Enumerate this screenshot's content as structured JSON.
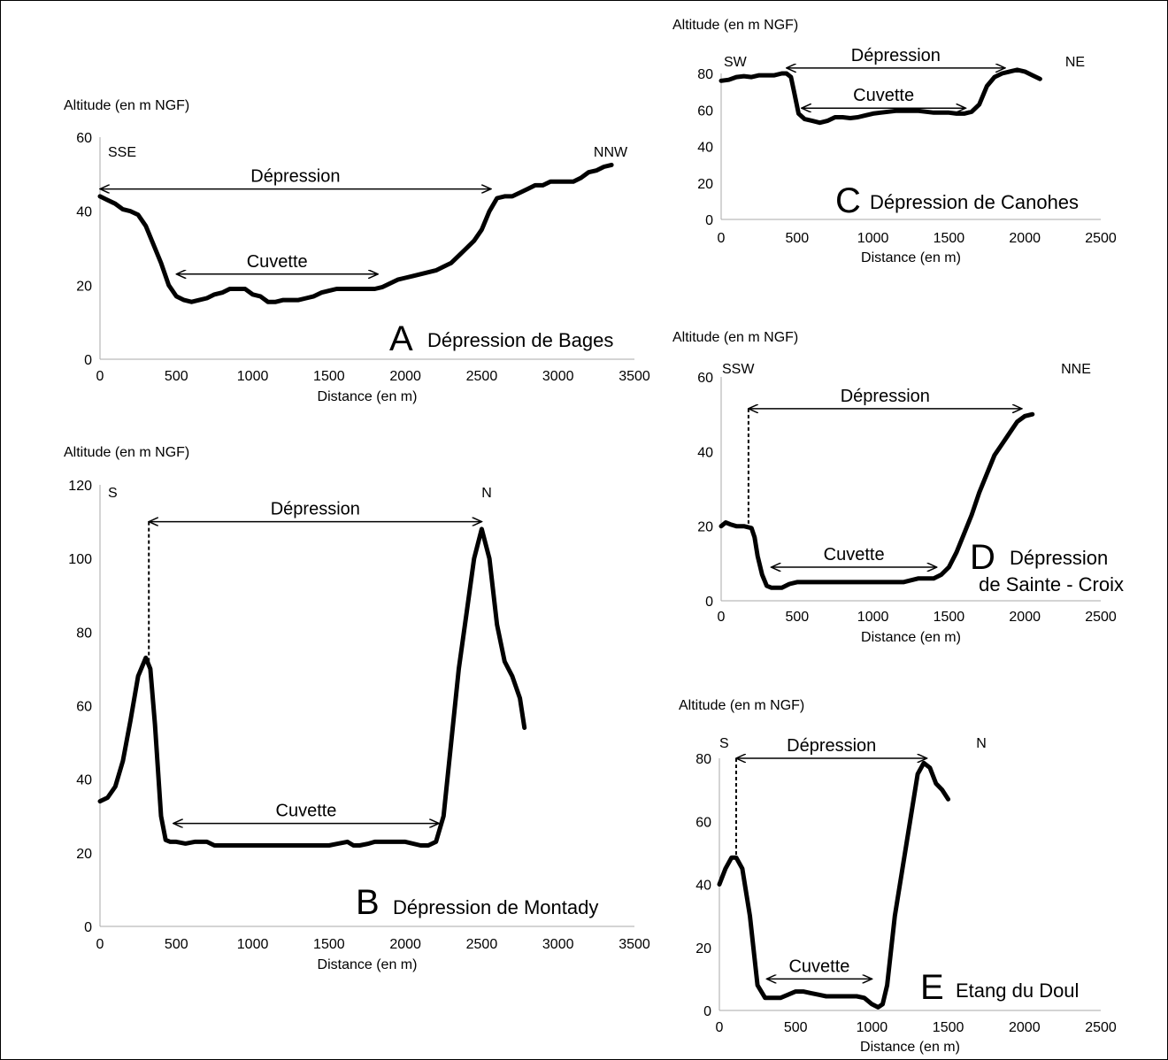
{
  "chart_data": [
    {
      "type": "line",
      "panel_letter": "A",
      "panel_name": "Dépression de Bages",
      "ylabel": "Altitude (en m NGF)",
      "xlabel": "Distance (en m)",
      "xlim": [
        0,
        3500
      ],
      "ylim": [
        0,
        60
      ],
      "xticks": [
        0,
        500,
        1000,
        1500,
        2000,
        2500,
        3000,
        3500
      ],
      "yticks": [
        0,
        20,
        40,
        60
      ],
      "direction_left": "SSE",
      "direction_right": "NNW",
      "depression_label": "Dépression",
      "depression_range": [
        0,
        2560
      ],
      "depression_y": 46,
      "cuvette_label": "Cuvette",
      "cuvette_range": [
        500,
        1820
      ],
      "cuvette_y": 23,
      "series": [
        {
          "x": [
            0,
            50,
            100,
            150,
            200,
            250,
            300,
            350,
            400,
            450,
            500,
            550,
            600,
            650,
            700,
            750,
            800,
            850,
            900,
            950,
            1000,
            1050,
            1100,
            1150,
            1200,
            1250,
            1300,
            1350,
            1400,
            1450,
            1500,
            1550,
            1600,
            1650,
            1700,
            1750,
            1800,
            1850,
            1900,
            1950,
            2000,
            2050,
            2100,
            2150,
            2200,
            2250,
            2300,
            2350,
            2400,
            2450,
            2500,
            2550,
            2600,
            2650,
            2700,
            2750,
            2800,
            2850,
            2900,
            2950,
            3000,
            3050,
            3100,
            3150,
            3200,
            3250,
            3300,
            3350
          ],
          "y": [
            44,
            43,
            42,
            40.5,
            40,
            39,
            36,
            31,
            26,
            20,
            17,
            16,
            15.5,
            16,
            16.5,
            17.5,
            18,
            19,
            19,
            19,
            17.5,
            17,
            15.5,
            15.5,
            16,
            16,
            16,
            16.5,
            17,
            18,
            18.5,
            19,
            19,
            19,
            19,
            19,
            19,
            19.5,
            20.5,
            21.5,
            22,
            22.5,
            23,
            23.5,
            24,
            25,
            26,
            28,
            30,
            32,
            35,
            40,
            43.5,
            44,
            44,
            45,
            46,
            47,
            47,
            48,
            48,
            48,
            48,
            49,
            50.5,
            51,
            52,
            52.5
          ]
        }
      ]
    },
    {
      "type": "line",
      "panel_letter": "B",
      "panel_name": "Dépression de Montady",
      "ylabel": "Altitude (en m NGF)",
      "xlabel": "Distance (en m)",
      "xlim": [
        0,
        3500
      ],
      "ylim": [
        0,
        120
      ],
      "xticks": [
        0,
        500,
        1000,
        1500,
        2000,
        2500,
        3000,
        3500
      ],
      "yticks": [
        0,
        20,
        40,
        60,
        80,
        100,
        120
      ],
      "direction_left": "S",
      "direction_right": "N",
      "depression_label": "Dépression",
      "depression_range": [
        320,
        2500
      ],
      "depression_y": 110,
      "depression_dashed_at": 320,
      "cuvette_label": "Cuvette",
      "cuvette_range": [
        480,
        2220
      ],
      "cuvette_y": 28,
      "series": [
        {
          "x": [
            0,
            50,
            100,
            150,
            200,
            250,
            300,
            330,
            360,
            400,
            430,
            460,
            500,
            560,
            620,
            700,
            750,
            800,
            1000,
            1200,
            1500,
            1560,
            1620,
            1660,
            1700,
            1760,
            1800,
            2000,
            2100,
            2150,
            2200,
            2250,
            2300,
            2350,
            2400,
            2450,
            2500,
            2550,
            2600,
            2650,
            2700,
            2750,
            2780
          ],
          "y": [
            34,
            35,
            38,
            45,
            56,
            68,
            73,
            70,
            55,
            30,
            23.5,
            23,
            23,
            22.5,
            23,
            23,
            22,
            22,
            22,
            22,
            22,
            22.5,
            23,
            22,
            22,
            22.5,
            23,
            23,
            22,
            22,
            23,
            30,
            50,
            70,
            85,
            100,
            108,
            100,
            82,
            72,
            68,
            62,
            54
          ]
        }
      ]
    },
    {
      "type": "line",
      "panel_letter": "C",
      "panel_name": "Dépression de Canohes",
      "ylabel": "Altitude (en m NGF)",
      "xlabel": "Distance (en m)",
      "xlim": [
        0,
        2500
      ],
      "ylim": [
        0,
        80
      ],
      "xticks": [
        0,
        500,
        1000,
        1500,
        2000,
        2500
      ],
      "yticks": [
        0,
        20,
        40,
        60,
        80
      ],
      "direction_left": "SW",
      "direction_right": "NE",
      "depression_label": "Dépression",
      "depression_range": [
        430,
        1870
      ],
      "depression_y": 83,
      "cuvette_label": "Cuvette",
      "cuvette_range": [
        530,
        1610
      ],
      "cuvette_y": 61,
      "series": [
        {
          "x": [
            0,
            50,
            100,
            150,
            200,
            250,
            300,
            350,
            400,
            430,
            460,
            480,
            510,
            550,
            600,
            650,
            700,
            750,
            800,
            850,
            900,
            950,
            1000,
            1050,
            1100,
            1150,
            1200,
            1250,
            1300,
            1350,
            1400,
            1450,
            1500,
            1550,
            1600,
            1650,
            1700,
            1750,
            1800,
            1850,
            1900,
            1950,
            2000,
            2050,
            2100
          ],
          "y": [
            76,
            76.5,
            78,
            78.5,
            78,
            79,
            79,
            79,
            80,
            80,
            78,
            70,
            58,
            55,
            54,
            53,
            54,
            56,
            56,
            55.5,
            56,
            57,
            58,
            58.5,
            59,
            59.5,
            59.5,
            59.5,
            59.5,
            59,
            58.5,
            58.5,
            58.5,
            58,
            58,
            59,
            63,
            73,
            78,
            80,
            81,
            82,
            81,
            79,
            77
          ]
        }
      ]
    },
    {
      "type": "line",
      "panel_letter": "D",
      "panel_name_line1": "Dépression",
      "panel_name_line2": "de Sainte - Croix",
      "ylabel": "Altitude (en m NGF)",
      "xlabel": "Distance (en m)",
      "xlim": [
        0,
        2500
      ],
      "ylim": [
        0,
        60
      ],
      "xticks": [
        0,
        500,
        1000,
        1500,
        2000,
        2500
      ],
      "yticks": [
        0,
        20,
        40,
        60
      ],
      "direction_left": "SSW",
      "direction_right": "NNE",
      "depression_label": "Dépression",
      "depression_range": [
        180,
        1980
      ],
      "depression_y": 51.5,
      "depression_dashed_at": 180,
      "cuvette_label": "Cuvette",
      "cuvette_range": [
        330,
        1420
      ],
      "cuvette_y": 9,
      "series": [
        {
          "x": [
            0,
            30,
            60,
            100,
            150,
            200,
            220,
            240,
            270,
            300,
            330,
            360,
            400,
            450,
            500,
            600,
            800,
            1000,
            1200,
            1250,
            1300,
            1350,
            1400,
            1450,
            1500,
            1550,
            1600,
            1650,
            1700,
            1750,
            1800,
            1850,
            1900,
            1950,
            2000,
            2050
          ],
          "y": [
            20,
            21,
            20.5,
            20,
            20,
            19.5,
            17,
            12,
            7,
            4,
            3.5,
            3.5,
            3.5,
            4.5,
            5,
            5,
            5,
            5,
            5,
            5.5,
            6,
            6,
            6,
            7,
            9,
            13,
            18,
            23,
            29,
            34,
            39,
            42,
            45,
            48,
            49.5,
            50
          ]
        }
      ]
    },
    {
      "type": "line",
      "panel_letter": "E",
      "panel_name": "Etang du Doul",
      "ylabel": "Altitude (en m NGF)",
      "xlabel": "Distance (en m)",
      "xlim": [
        0,
        2500
      ],
      "ylim": [
        0,
        80
      ],
      "xticks": [
        0,
        500,
        1000,
        1500,
        2000,
        2500
      ],
      "yticks": [
        0,
        20,
        40,
        60,
        80
      ],
      "direction_left": "S",
      "direction_right": "N",
      "depression_label": "Dépression",
      "depression_range": [
        110,
        1360
      ],
      "depression_y": 80,
      "depression_dashed_at": 110,
      "cuvette_label": "Cuvette",
      "cuvette_range": [
        310,
        1000
      ],
      "cuvette_y": 10,
      "series": [
        {
          "x": [
            0,
            40,
            80,
            110,
            150,
            200,
            250,
            300,
            350,
            400,
            450,
            500,
            550,
            600,
            650,
            700,
            750,
            800,
            850,
            900,
            950,
            1000,
            1040,
            1070,
            1100,
            1150,
            1200,
            1250,
            1300,
            1340,
            1380,
            1420,
            1460,
            1500
          ],
          "y": [
            40,
            45,
            48.5,
            48.5,
            45,
            30,
            8,
            4,
            4,
            4,
            5,
            6,
            6,
            5.5,
            5,
            4.5,
            4.5,
            4.5,
            4.5,
            4.5,
            4,
            2,
            1,
            2,
            8,
            30,
            45,
            60,
            75,
            78.5,
            77,
            72,
            70,
            67
          ]
        }
      ]
    }
  ]
}
